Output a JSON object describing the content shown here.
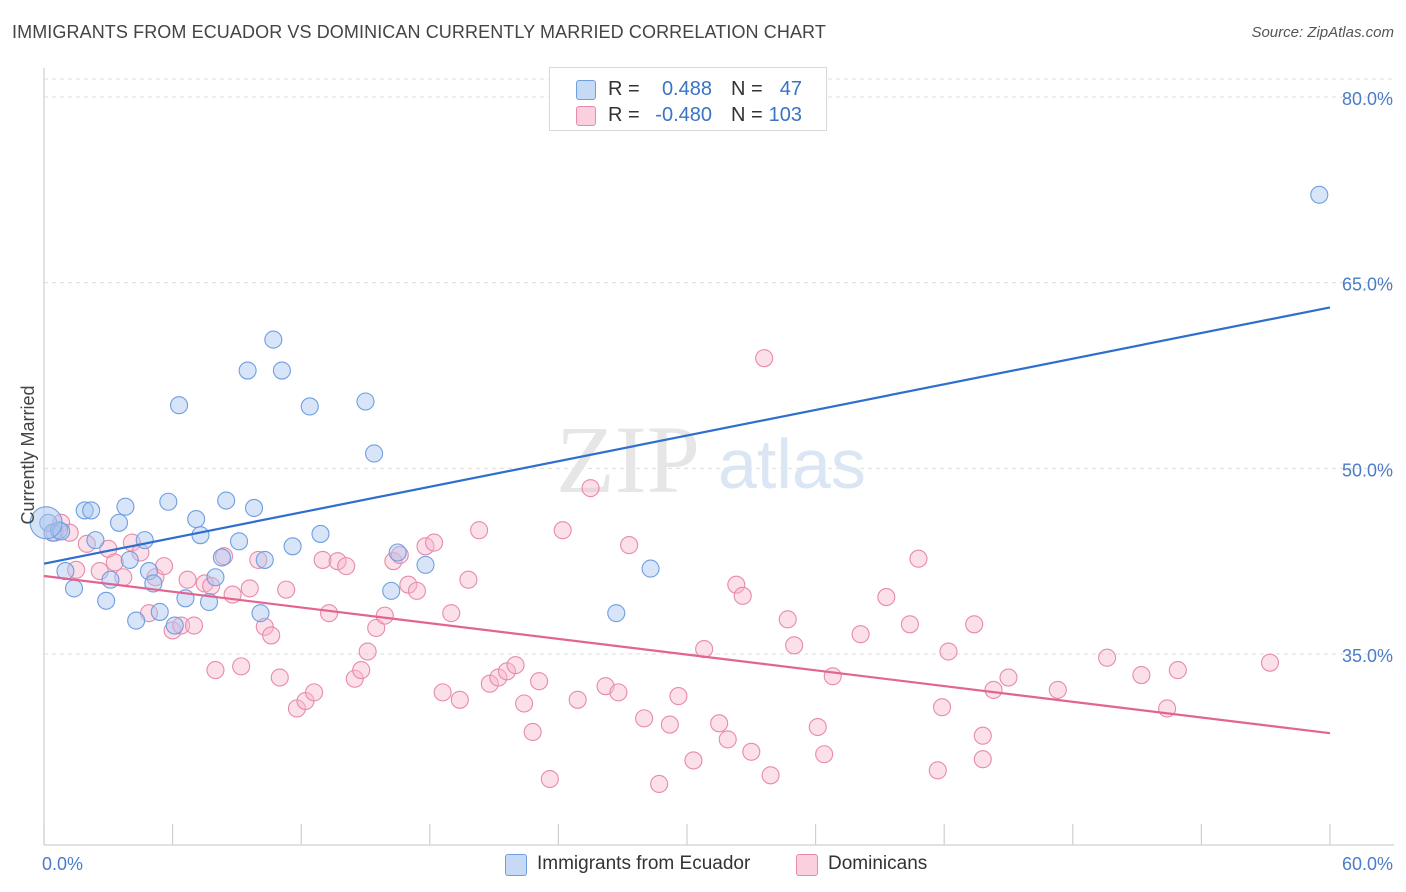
{
  "header": {
    "title": "IMMIGRANTS FROM ECUADOR VS DOMINICAN CURRENTLY MARRIED CORRELATION CHART",
    "source": "Source: ZipAtlas.com"
  },
  "watermark": {
    "zip": "ZIP",
    "atlas": "atlas"
  },
  "legend": {
    "rows": [
      {
        "r_label": "R =",
        "r_value": "0.488",
        "n_label": "N =",
        "n_value": "47",
        "color": "#a9c6f0"
      },
      {
        "r_label": "R =",
        "r_value": "-0.480",
        "n_label": "N =",
        "n_value": "103",
        "color": "#f6b8ce"
      }
    ]
  },
  "bottom_legend": {
    "series1": "Immigrants from Ecuador",
    "series2": "Dominicans"
  },
  "colors": {
    "blue_fill": "#a9c6f0",
    "blue_stroke": "#6f9fe0",
    "blue_line": "#2e6fce",
    "pink_fill": "#f6b8ce",
    "pink_stroke": "#e88aab",
    "pink_line": "#e2648f",
    "axis_text": "#4a7cc9",
    "grid": "#dcdcdc"
  },
  "chart_data": {
    "type": "scatter",
    "title": "IMMIGRANTS FROM ECUADOR VS DOMINICAN CURRENTLY MARRIED CORRELATION CHART",
    "xlabel": "",
    "ylabel": "Currently Married",
    "xlim": [
      0,
      60
    ],
    "ylim": [
      21,
      82
    ],
    "x_tick_labels": [
      "0.0%",
      "60.0%"
    ],
    "y_ticks": [
      35,
      50,
      65,
      80
    ],
    "y_tick_labels": [
      "35.0%",
      "50.0%",
      "65.0%",
      "80.0%"
    ],
    "grid": true,
    "legend_position": "top-center",
    "series": [
      {
        "name": "Immigrants from Ecuador",
        "r": 0.488,
        "n": 47,
        "trend": {
          "x": [
            0,
            60
          ],
          "y": [
            42.3,
            63.0
          ]
        },
        "points": [
          [
            0.2,
            45.6
          ],
          [
            0.4,
            44.8
          ],
          [
            0.7,
            45.0
          ],
          [
            1.0,
            41.7
          ],
          [
            1.4,
            40.3
          ],
          [
            1.9,
            46.6
          ],
          [
            2.2,
            46.6
          ],
          [
            2.4,
            44.2
          ],
          [
            2.9,
            39.3
          ],
          [
            3.1,
            41.0
          ],
          [
            3.5,
            45.6
          ],
          [
            3.8,
            46.9
          ],
          [
            4.0,
            42.6
          ],
          [
            4.3,
            37.7
          ],
          [
            4.7,
            44.2
          ],
          [
            4.9,
            41.7
          ],
          [
            5.1,
            40.7
          ],
          [
            5.4,
            38.4
          ],
          [
            5.8,
            47.3
          ],
          [
            6.1,
            37.3
          ],
          [
            6.3,
            55.1
          ],
          [
            6.6,
            39.5
          ],
          [
            7.1,
            45.9
          ],
          [
            7.3,
            44.6
          ],
          [
            7.7,
            39.2
          ],
          [
            8.0,
            41.2
          ],
          [
            8.3,
            42.8
          ],
          [
            8.5,
            47.4
          ],
          [
            9.1,
            44.1
          ],
          [
            9.5,
            57.9
          ],
          [
            9.8,
            46.8
          ],
          [
            10.1,
            38.3
          ],
          [
            10.3,
            42.6
          ],
          [
            10.7,
            60.4
          ],
          [
            11.1,
            57.9
          ],
          [
            11.6,
            43.7
          ],
          [
            12.4,
            55.0
          ],
          [
            12.9,
            44.7
          ],
          [
            15.0,
            55.4
          ],
          [
            15.4,
            51.2
          ],
          [
            16.2,
            40.1
          ],
          [
            16.5,
            43.2
          ],
          [
            17.8,
            42.2
          ],
          [
            26.7,
            38.3
          ],
          [
            28.3,
            41.9
          ],
          [
            59.5,
            72.1
          ],
          [
            0.8,
            44.9
          ]
        ]
      },
      {
        "name": "Dominicans",
        "r": -0.48,
        "n": 103,
        "trend": {
          "x": [
            0,
            60
          ],
          "y": [
            41.3,
            28.6
          ]
        },
        "points": [
          [
            0.5,
            44.8
          ],
          [
            0.8,
            45.6
          ],
          [
            1.2,
            44.8
          ],
          [
            1.5,
            41.8
          ],
          [
            2.0,
            43.9
          ],
          [
            2.6,
            41.7
          ],
          [
            3.0,
            43.5
          ],
          [
            3.3,
            42.4
          ],
          [
            3.7,
            41.2
          ],
          [
            4.1,
            44.0
          ],
          [
            4.5,
            43.2
          ],
          [
            4.9,
            38.3
          ],
          [
            5.2,
            41.2
          ],
          [
            5.6,
            42.1
          ],
          [
            6.0,
            36.9
          ],
          [
            6.4,
            37.3
          ],
          [
            6.7,
            41.0
          ],
          [
            7.0,
            37.3
          ],
          [
            7.5,
            40.7
          ],
          [
            7.8,
            40.5
          ],
          [
            8.0,
            33.7
          ],
          [
            8.4,
            42.9
          ],
          [
            8.8,
            39.8
          ],
          [
            9.2,
            34.0
          ],
          [
            9.6,
            40.3
          ],
          [
            10.0,
            42.6
          ],
          [
            10.3,
            37.2
          ],
          [
            10.6,
            36.5
          ],
          [
            11.0,
            33.1
          ],
          [
            11.3,
            40.2
          ],
          [
            11.8,
            30.6
          ],
          [
            12.2,
            31.2
          ],
          [
            12.6,
            31.9
          ],
          [
            13.0,
            42.6
          ],
          [
            13.3,
            38.3
          ],
          [
            13.7,
            42.5
          ],
          [
            14.1,
            42.1
          ],
          [
            14.5,
            33.0
          ],
          [
            14.8,
            33.7
          ],
          [
            15.1,
            35.2
          ],
          [
            15.5,
            37.1
          ],
          [
            15.9,
            38.1
          ],
          [
            16.3,
            42.5
          ],
          [
            16.6,
            43.0
          ],
          [
            17.0,
            40.6
          ],
          [
            17.4,
            40.1
          ],
          [
            17.8,
            43.7
          ],
          [
            18.2,
            44.0
          ],
          [
            18.6,
            31.9
          ],
          [
            19.0,
            38.3
          ],
          [
            19.4,
            31.3
          ],
          [
            19.8,
            41.0
          ],
          [
            20.3,
            45.0
          ],
          [
            20.8,
            32.6
          ],
          [
            21.2,
            33.1
          ],
          [
            21.6,
            33.6
          ],
          [
            22.0,
            34.1
          ],
          [
            22.4,
            31.0
          ],
          [
            22.8,
            28.7
          ],
          [
            23.1,
            32.8
          ],
          [
            23.6,
            24.9
          ],
          [
            24.2,
            45.0
          ],
          [
            24.9,
            31.3
          ],
          [
            25.5,
            48.4
          ],
          [
            26.2,
            32.4
          ],
          [
            26.8,
            31.9
          ],
          [
            27.3,
            43.8
          ],
          [
            28.0,
            29.8
          ],
          [
            28.7,
            24.5
          ],
          [
            29.2,
            29.3
          ],
          [
            29.6,
            31.6
          ],
          [
            30.3,
            26.4
          ],
          [
            30.8,
            35.4
          ],
          [
            31.5,
            29.4
          ],
          [
            31.9,
            28.1
          ],
          [
            32.3,
            40.6
          ],
          [
            32.6,
            39.7
          ],
          [
            33.0,
            27.1
          ],
          [
            33.6,
            58.9
          ],
          [
            33.9,
            25.2
          ],
          [
            34.7,
            37.8
          ],
          [
            35.0,
            35.7
          ],
          [
            36.1,
            29.1
          ],
          [
            36.4,
            26.9
          ],
          [
            36.8,
            33.2
          ],
          [
            38.1,
            36.6
          ],
          [
            39.3,
            39.6
          ],
          [
            40.4,
            37.4
          ],
          [
            40.8,
            42.7
          ],
          [
            41.7,
            25.6
          ],
          [
            41.9,
            30.7
          ],
          [
            42.2,
            35.2
          ],
          [
            43.4,
            37.4
          ],
          [
            44.3,
            32.1
          ],
          [
            45.0,
            33.1
          ],
          [
            43.8,
            28.4
          ],
          [
            43.8,
            26.5
          ],
          [
            47.3,
            32.1
          ],
          [
            49.6,
            34.7
          ],
          [
            51.2,
            33.3
          ],
          [
            52.4,
            30.6
          ],
          [
            52.9,
            33.7
          ],
          [
            57.2,
            34.3
          ]
        ]
      }
    ]
  }
}
